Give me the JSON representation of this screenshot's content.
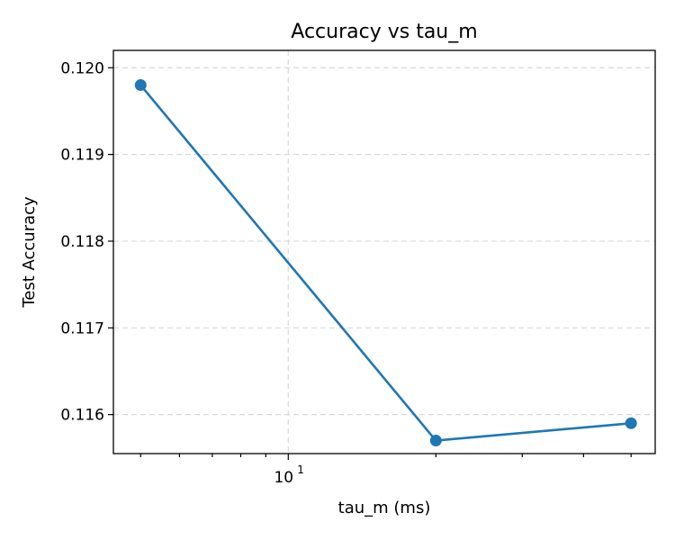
{
  "chart_data": {
    "type": "line",
    "title": "Accuracy vs tau_m",
    "xlabel": "tau_m (ms)",
    "ylabel": "Test Accuracy",
    "x_scale": "log",
    "xlim": [
      4.4,
      56
    ],
    "ylim": [
      0.11555,
      0.1202
    ],
    "x_major_ticks": [
      {
        "value": 10,
        "base": "10",
        "exp": "1"
      }
    ],
    "x_minor_ticks": [
      5,
      6,
      7,
      8,
      9,
      20,
      30,
      40,
      50
    ],
    "y_ticks": [
      0.116,
      0.117,
      0.118,
      0.119,
      0.12
    ],
    "y_tick_labels": [
      "0.116",
      "0.117",
      "0.118",
      "0.119",
      "0.120"
    ],
    "grid": true,
    "series": [
      {
        "x": [
          5,
          20,
          50
        ],
        "y": [
          0.1198,
          0.1157,
          0.1159
        ],
        "color": "#1f77b4",
        "marker": "circle"
      }
    ]
  }
}
